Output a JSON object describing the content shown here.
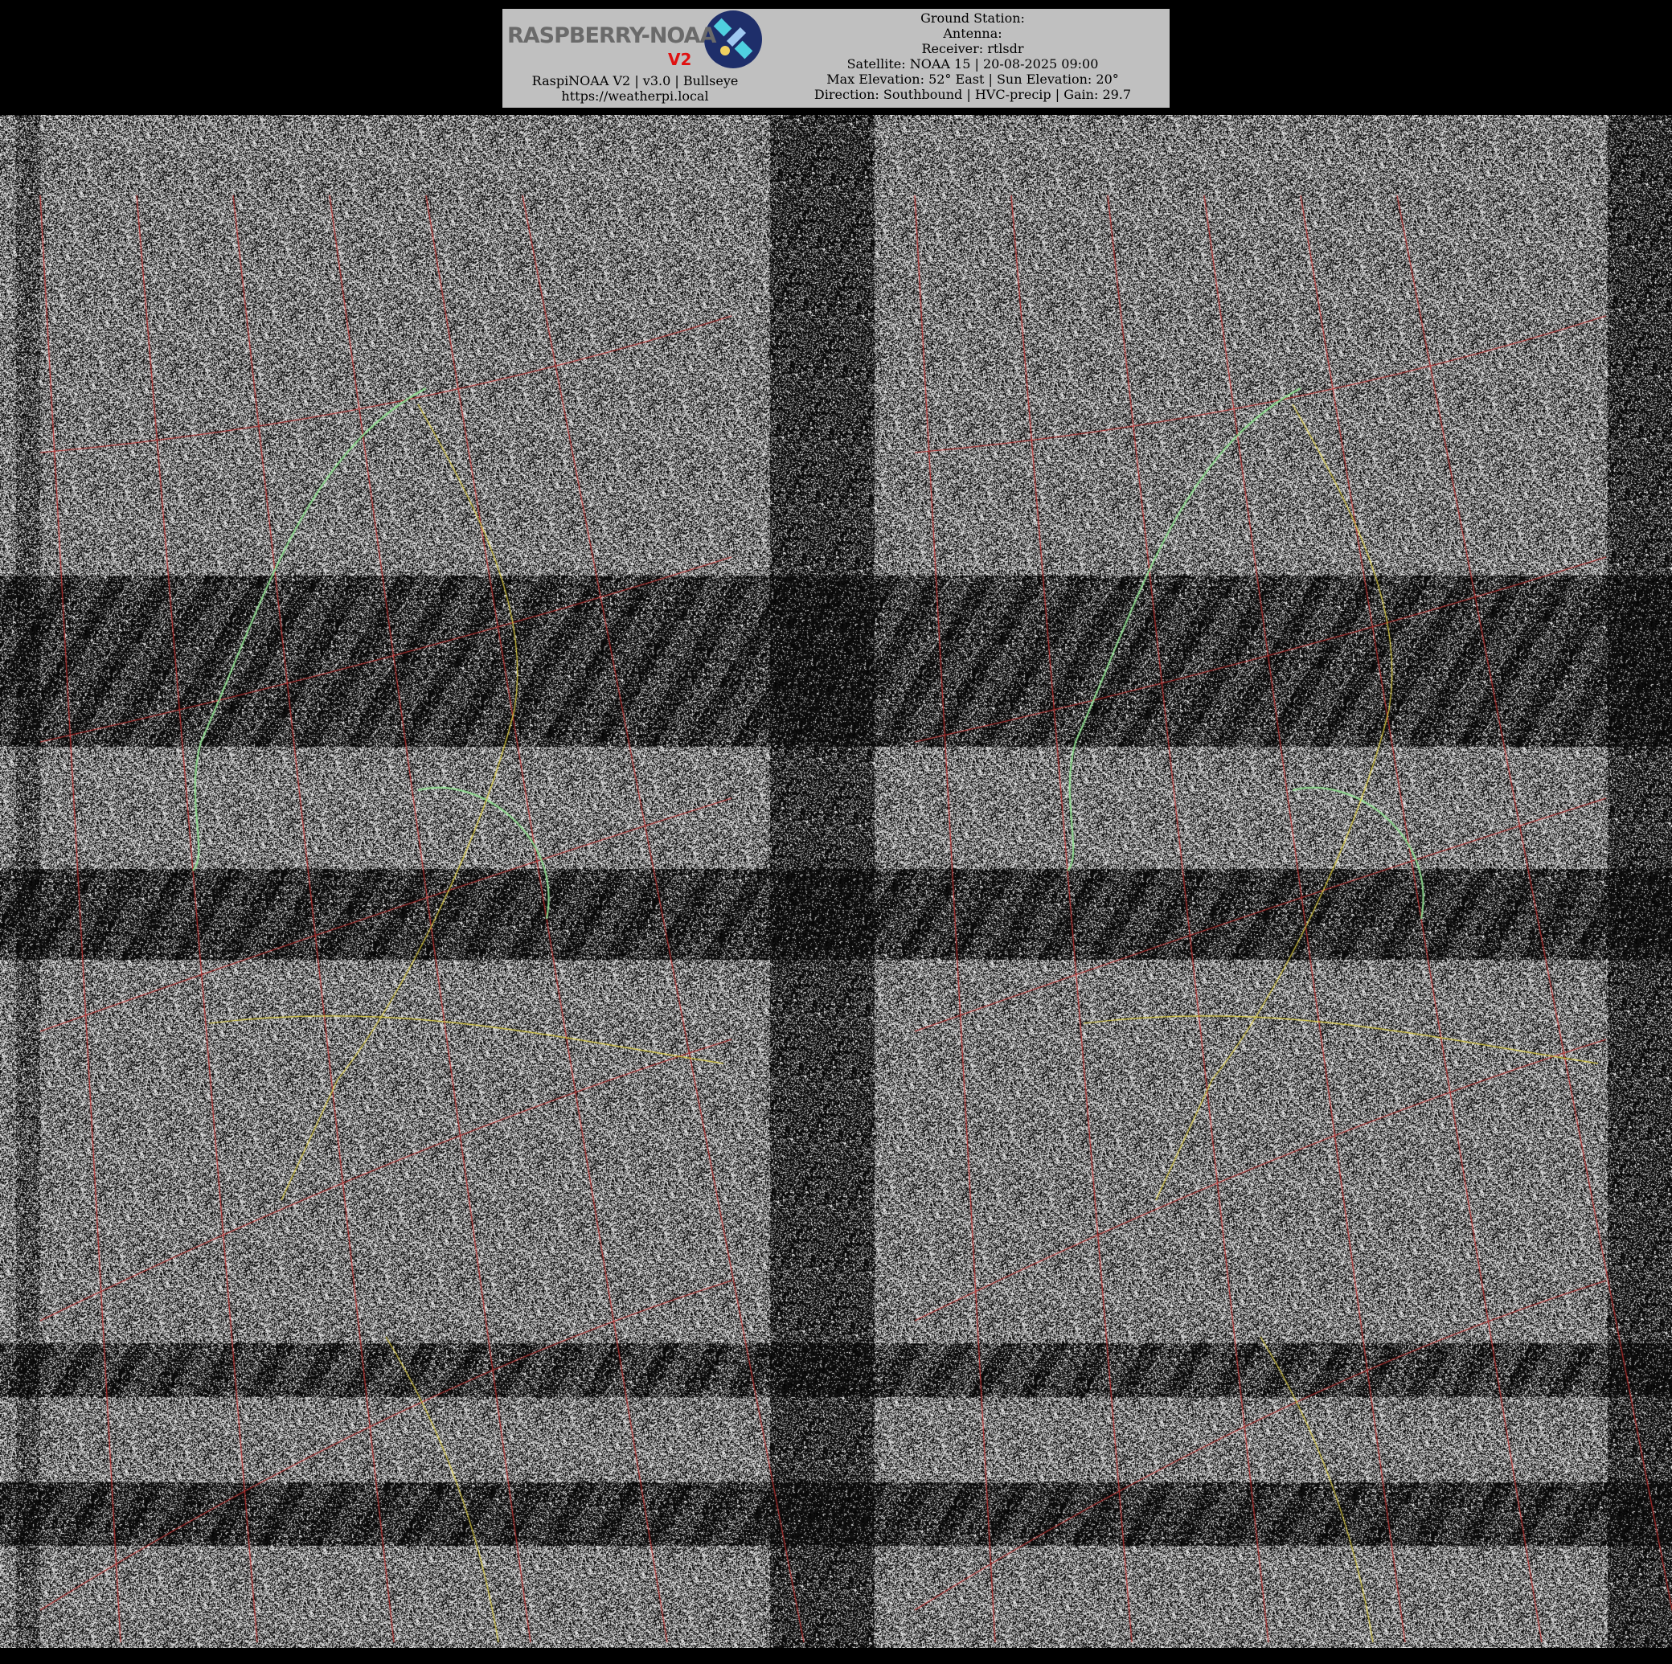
{
  "header": {
    "logo_text": "RASPBERRY-NOAA",
    "logo_badge": "V2",
    "app_line": "RaspiNOAA V2 | v3.0 | Bullseye",
    "url": "https://weatherpi.local",
    "ground_station": "Ground Station:",
    "antenna": "Antenna:",
    "receiver": "Receiver: rtlsdr",
    "satellite": "Satellite: NOAA 15 | 20-08-2025 09:00",
    "elevation": "Max Elevation: 52° East | Sun Elevation: 20°",
    "direction": "Direction: Southbound | HVC-precip | Gain: 29.7"
  },
  "image": {
    "type": "APT satellite image with map overlay (noisy)",
    "colors": {
      "grid": "#c03030",
      "coastline": "#90e090",
      "borders": "#e0d040"
    }
  }
}
